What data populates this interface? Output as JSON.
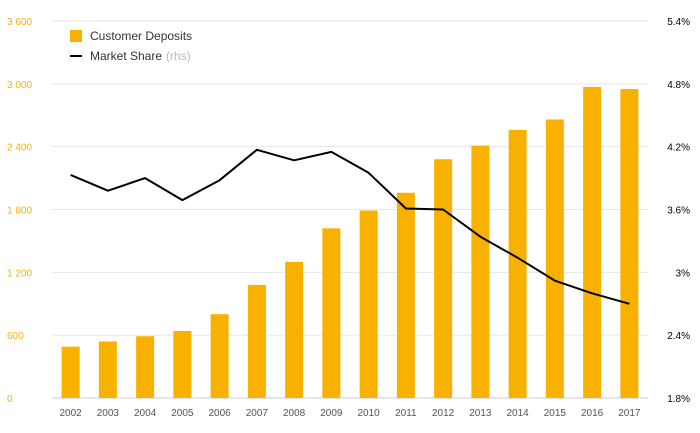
{
  "chart_data": {
    "type": "bar+line",
    "categories": [
      "2002",
      "2003",
      "2004",
      "2005",
      "2006",
      "2007",
      "2008",
      "2009",
      "2010",
      "2011",
      "2012",
      "2013",
      "2014",
      "2015",
      "2016",
      "2017"
    ],
    "series": [
      {
        "name": "Customer Deposits",
        "type": "bar",
        "axis": "left",
        "color": "#F9B100",
        "values": [
          490,
          540,
          590,
          640,
          800,
          1080,
          1300,
          1620,
          1790,
          1960,
          2280,
          2410,
          2560,
          2660,
          2970,
          2950
        ]
      },
      {
        "name": "Market Share",
        "legend_suffix": "(rhs)",
        "type": "line",
        "axis": "right",
        "color": "#000000",
        "values": [
          3.93,
          3.78,
          3.9,
          3.69,
          3.88,
          4.17,
          4.07,
          4.15,
          3.95,
          3.61,
          3.6,
          3.34,
          3.14,
          2.92,
          2.8,
          2.7
        ]
      }
    ],
    "y_left": {
      "min": 0,
      "max": 3600,
      "ticks": [
        "0",
        "600",
        "1 200",
        "1 800",
        "2 400",
        "3 000",
        "3 600"
      ],
      "tick_color": "#F9B100"
    },
    "y_right": {
      "min": 1.8,
      "max": 5.4,
      "ticks": [
        "1.8%",
        "2.4%",
        "3%",
        "3.6%",
        "4.2%",
        "4.8%",
        "5.4%"
      ],
      "tick_color": "#000000"
    },
    "grid": true,
    "legend_position": "top-left"
  }
}
